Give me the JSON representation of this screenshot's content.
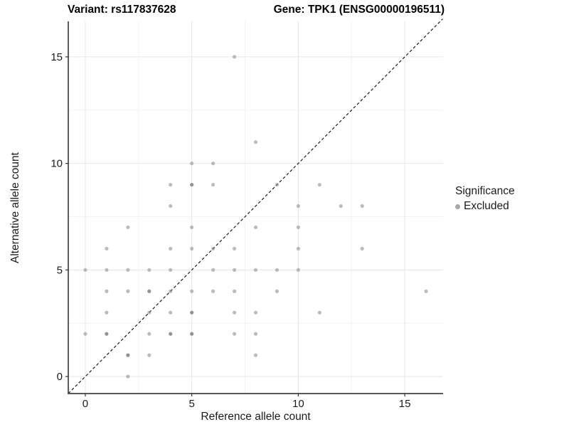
{
  "title": {
    "variant": "Variant: rs117837628",
    "gene": "Gene: TPK1 (ENSG00000196511)"
  },
  "axes": {
    "x_label": "Reference allele count",
    "y_label": "Alternative allele count"
  },
  "legend": {
    "title": "Significance",
    "items": [
      {
        "label": "Excluded",
        "color": "#a8a8a8"
      }
    ]
  },
  "colors": {
    "point": "#8c8c8c",
    "legend_key": "#a8a8a8",
    "grid_major": "#e6e6e6",
    "grid_minor": "#f2f2f2",
    "axis_line_left": "#1a1a1a",
    "axis_line_bottom": "#595959",
    "tick": "#333333",
    "diagonal": "#1a1a1a",
    "background": "#ffffff"
  },
  "chart_data": {
    "type": "scatter",
    "title": "Variant: rs117837628   |   Gene: TPK1 (ENSG00000196511)",
    "xlabel": "Reference allele count",
    "ylabel": "Alternative allele count",
    "xlim": [
      -0.8,
      16.8
    ],
    "ylim": [
      -0.8,
      16.7
    ],
    "x_ticks": [
      0,
      5,
      10,
      15
    ],
    "y_ticks": [
      0,
      5,
      10,
      15
    ],
    "x_minor_ticks": [
      2.5,
      7.5,
      12.5
    ],
    "y_minor_ticks": [
      2.5,
      7.5,
      12.5
    ],
    "grid": true,
    "legend_position": "right",
    "identity_line": {
      "type": "y=x",
      "style": "dashed",
      "from": -0.8,
      "to": 16.78
    },
    "series": [
      {
        "name": "Excluded",
        "points": [
          [
            0,
            2
          ],
          [
            0,
            5
          ],
          [
            1,
            2
          ],
          [
            1,
            3
          ],
          [
            1,
            4
          ],
          [
            1,
            5
          ],
          [
            1,
            6
          ],
          [
            2,
            0
          ],
          [
            2,
            1
          ],
          [
            2,
            4
          ],
          [
            2,
            5
          ],
          [
            2,
            7
          ],
          [
            3,
            1
          ],
          [
            3,
            2
          ],
          [
            3,
            3
          ],
          [
            3,
            4
          ],
          [
            3,
            5
          ],
          [
            4,
            2
          ],
          [
            4,
            3
          ],
          [
            4,
            4
          ],
          [
            4,
            5
          ],
          [
            4,
            6
          ],
          [
            4,
            8
          ],
          [
            4,
            9
          ],
          [
            5,
            2
          ],
          [
            5,
            3
          ],
          [
            5,
            4
          ],
          [
            5,
            6
          ],
          [
            5,
            7
          ],
          [
            5,
            9
          ],
          [
            5,
            10
          ],
          [
            6,
            4
          ],
          [
            6,
            5
          ],
          [
            6,
            6
          ],
          [
            6,
            9
          ],
          [
            6,
            10
          ],
          [
            7,
            2
          ],
          [
            7,
            3
          ],
          [
            7,
            4
          ],
          [
            7,
            5
          ],
          [
            7,
            6
          ],
          [
            7,
            15
          ],
          [
            8,
            1
          ],
          [
            8,
            2
          ],
          [
            8,
            3
          ],
          [
            8,
            5
          ],
          [
            8,
            7
          ],
          [
            8,
            11
          ],
          [
            9,
            4
          ],
          [
            9,
            5
          ],
          [
            9,
            9
          ],
          [
            10,
            5
          ],
          [
            10,
            6
          ],
          [
            10,
            7
          ],
          [
            10,
            8
          ],
          [
            11,
            3
          ],
          [
            11,
            9
          ],
          [
            12,
            8
          ],
          [
            13,
            6
          ],
          [
            13,
            8
          ],
          [
            16,
            4
          ]
        ],
        "emphasized_points": [
          [
            1,
            2
          ],
          [
            2,
            1
          ],
          [
            3,
            4
          ],
          [
            4,
            2
          ],
          [
            5,
            2
          ],
          [
            5,
            3
          ],
          [
            5,
            9
          ]
        ]
      }
    ]
  }
}
